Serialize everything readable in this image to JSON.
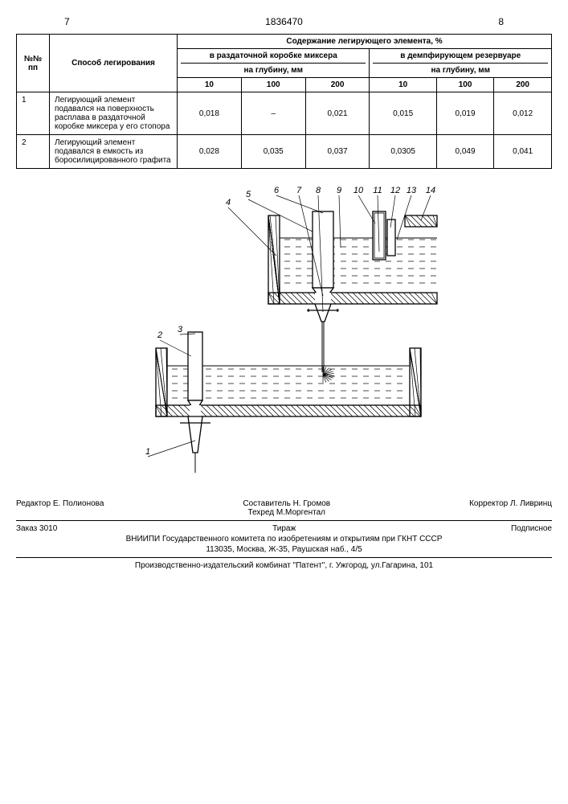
{
  "header": {
    "page_left": "7",
    "patent_number": "1836470",
    "page_right": "8"
  },
  "table": {
    "col_no": "№№\nпп",
    "col_method": "Способ легирования",
    "group_header": "Содержание легирующего элемента, %",
    "sub_left": "в раздаточной коробке миксера",
    "sub_right": "в демпфирующем резервуаре",
    "depth_label_left": "на глубину, мм",
    "depth_label_right": "на глубину, мм",
    "depths": [
      "10",
      "100",
      "200",
      "10",
      "100",
      "200"
    ],
    "rows": [
      {
        "no": "1",
        "method": "Легирующий элемент подавался на поверхность расплава в раздаточной коробке миксера у его стопора",
        "vals": [
          "0,018",
          "–",
          "0,021",
          "0,015",
          "0,019",
          "0,012"
        ]
      },
      {
        "no": "2",
        "method": "Легирующий элемент подавался в емкость из боросилицированного графита",
        "vals": [
          "0,028",
          "0,035",
          "0,037",
          "0,0305",
          "0,049",
          "0,041"
        ]
      }
    ]
  },
  "diagram": {
    "labels": [
      "1",
      "2",
      "3",
      "4",
      "5",
      "6",
      "7",
      "8",
      "9",
      "10",
      "11",
      "12",
      "13",
      "14"
    ],
    "hatch_color": "#000000",
    "liquid_color": "#000000",
    "bg": "#ffffff",
    "line_w": 1.3
  },
  "footer": {
    "editor": "Редактор Е. Полионова",
    "compiler": "Составитель Н. Громов",
    "techred": "Техред М.Моргентал",
    "corrector": "Корректор  Л. Ливринц",
    "order": "Заказ 3010",
    "tirazh": "Тираж",
    "podpisnoe": "Подписное",
    "org": "ВНИИПИ Государственного комитета по изобретениям и открытиям при ГКНТ СССР",
    "addr1": "113035, Москва, Ж-35, Раушская наб., 4/5",
    "addr2": "Производственно-издательский комбинат \"Патент\", г. Ужгород, ул.Гагарина, 101"
  }
}
